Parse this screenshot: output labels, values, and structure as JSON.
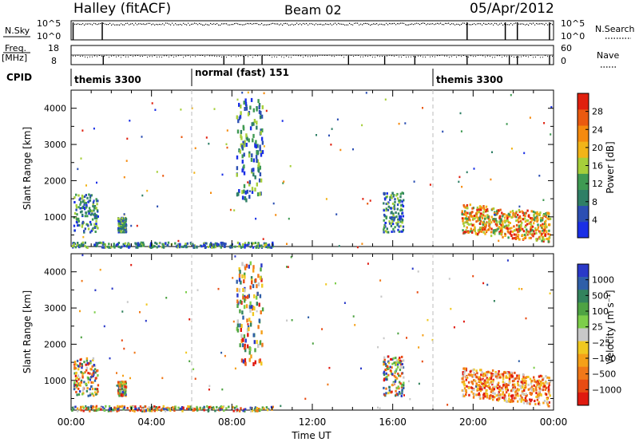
{
  "header": {
    "title": "Halley (fitACF)",
    "beam": "Beam 02",
    "date": "05/Apr/2012"
  },
  "strips": {
    "nsky_label": "N.Sky",
    "nsearch_label": "N.Search",
    "freq_label": "Freq.",
    "freq_unit": "[MHz]",
    "nave_label": "Nave",
    "cpid_label": "CPID",
    "nsky_ticks_left": [
      "10^5",
      "10^0"
    ],
    "nsky_ticks_right": [
      "10^5",
      "10^0"
    ],
    "freq_ticks": [
      "18",
      "8"
    ],
    "nave_ticks": [
      "60",
      "0"
    ]
  },
  "cpid_segments": [
    {
      "label": "themis 3300",
      "start_hour": 0
    },
    {
      "label": "normal (fast) 151",
      "start_hour": 6
    },
    {
      "label": "themis 3300",
      "start_hour": 18
    }
  ],
  "colors": {
    "power_scale": [
      "#1a2fe6",
      "#2c4fb3",
      "#2f7f66",
      "#3f9a52",
      "#a6cf3a",
      "#f2b418",
      "#f58a0e",
      "#ea5a10",
      "#e0200e"
    ],
    "velocity_scale": [
      "#2a39c8",
      "#2f5fa8",
      "#33835d",
      "#4ea343",
      "#7dce4a",
      "#c8c8c8",
      "#f0c820",
      "#f5a018",
      "#f07818",
      "#e84c14",
      "#e01a10"
    ]
  },
  "chart_data": [
    {
      "type": "heatmap",
      "name": "power",
      "xlabel": "",
      "ylabel": "Slant Range [km]",
      "xlim": [
        0,
        24
      ],
      "ylim": [
        180,
        4500
      ],
      "y_ticks": [
        "1000",
        "2000",
        "3000",
        "4000"
      ],
      "colorbar_label": "Power [dB]",
      "colorbar_ticks": [
        "4",
        "8",
        "12",
        "16",
        "20",
        "24",
        "28"
      ],
      "features": [
        {
          "t0": 0.1,
          "t1": 1.3,
          "r0": 600,
          "r1": 1650
        },
        {
          "t0": 2.3,
          "t1": 2.7,
          "r0": 600,
          "r1": 1000
        },
        {
          "t0": 0.0,
          "t1": 10.0,
          "r0": 180,
          "r1": 320
        },
        {
          "t0": 8.2,
          "t1": 9.5,
          "r0": 1500,
          "r1": 4300
        },
        {
          "t0": 19.4,
          "t1": 23.8,
          "r0": 580,
          "r1": 1400
        },
        {
          "t0": 15.5,
          "t1": 16.5,
          "r0": 600,
          "r1": 1700
        }
      ]
    },
    {
      "type": "heatmap",
      "name": "velocity",
      "xlabel": "Time UT",
      "ylabel": "Slant Range [km]",
      "xlim": [
        0,
        24
      ],
      "ylim": [
        180,
        4500
      ],
      "x_ticks": [
        "00:00",
        "04:00",
        "08:00",
        "12:00",
        "16:00",
        "20:00",
        "00:00"
      ],
      "y_ticks": [
        "1000",
        "2000",
        "3000",
        "4000"
      ],
      "colorbar_label": "Velocity [m s⁻¹]",
      "colorbar_ticks": [
        "1000",
        "500",
        "100",
        "25",
        "−25",
        "−100",
        "−500",
        "−1000"
      ]
    }
  ]
}
